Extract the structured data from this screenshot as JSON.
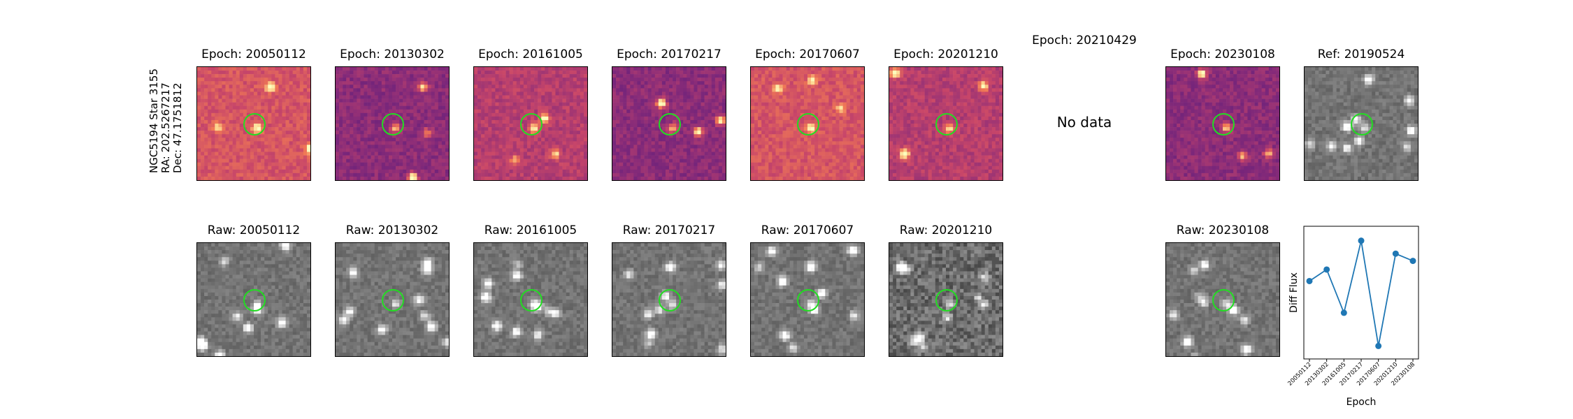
{
  "star": {
    "name": "NGC5194 Star 3155",
    "ra": "RA: 202.5267217",
    "dec": "Dec: 47.1751812"
  },
  "colors": {
    "ring": "#22dd22",
    "line": "#1f77b4"
  },
  "diff_row": [
    {
      "title": "Epoch: 20050112",
      "has_data": true,
      "cmap": "magma-warm"
    },
    {
      "title": "Epoch: 20130302",
      "has_data": true,
      "cmap": "magma-cool"
    },
    {
      "title": "Epoch: 20161005",
      "has_data": true,
      "cmap": "magma-mid"
    },
    {
      "title": "Epoch: 20170217",
      "has_data": true,
      "cmap": "magma-cool"
    },
    {
      "title": "Epoch: 20170607",
      "has_data": true,
      "cmap": "magma-warm"
    },
    {
      "title": "Epoch: 20201210",
      "has_data": true,
      "cmap": "magma-mid"
    },
    {
      "title": "Epoch: 20210429",
      "has_data": false,
      "message": "No data"
    },
    {
      "title": "Epoch: 20230108",
      "has_data": true,
      "cmap": "magma-cool"
    },
    {
      "title": "Ref: 20190524",
      "has_data": true,
      "cmap": "gray"
    }
  ],
  "raw_row": [
    {
      "title": "Raw: 20050112",
      "cmap": "gray"
    },
    {
      "title": "Raw: 20130302",
      "cmap": "gray"
    },
    {
      "title": "Raw: 20161005",
      "cmap": "gray"
    },
    {
      "title": "Raw: 20170217",
      "cmap": "gray"
    },
    {
      "title": "Raw: 20170607",
      "cmap": "gray"
    },
    {
      "title": "Raw: 20201210",
      "cmap": "gray-noisy"
    },
    null,
    {
      "title": "Raw: 20230108",
      "cmap": "gray"
    }
  ],
  "chart_data": {
    "type": "line",
    "title": "",
    "xlabel": "Epoch",
    "ylabel": "Diff Flux",
    "categories": [
      "20050112",
      "20130302",
      "20161005",
      "20170217",
      "20170607",
      "20201210",
      "20230108"
    ],
    "series": [
      {
        "values": [
          0.62,
          0.7,
          0.4,
          0.9,
          0.17,
          0.81,
          0.76
        ]
      }
    ],
    "ylim": [
      0.08,
      1.0
    ],
    "y_ticks_visible": false,
    "grid": false
  }
}
